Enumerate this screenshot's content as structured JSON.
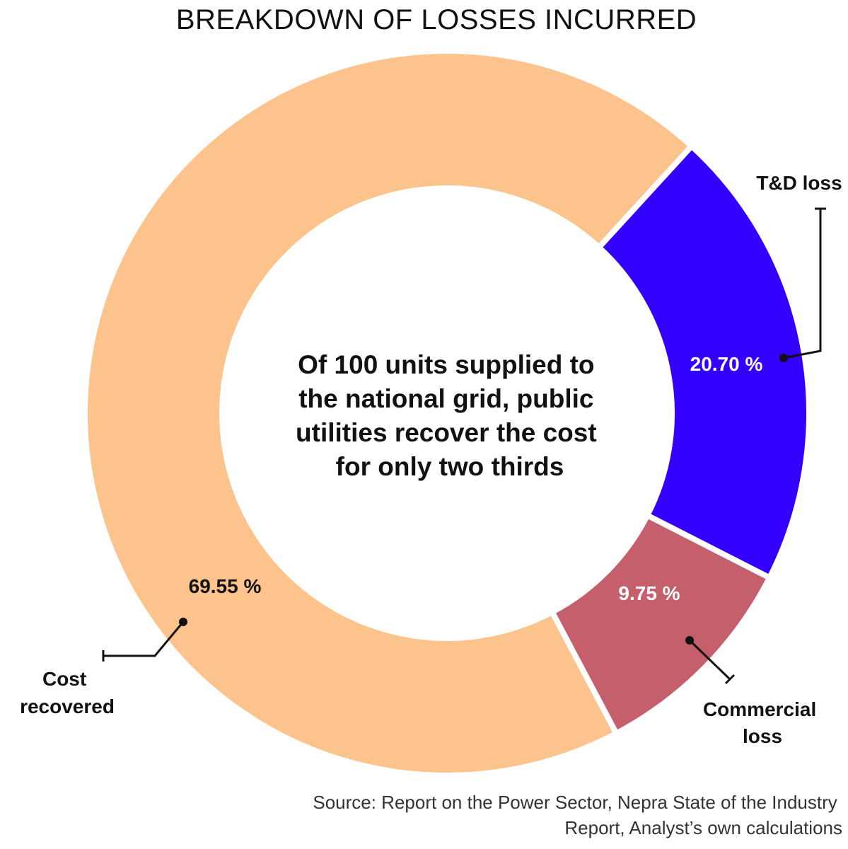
{
  "chart_data": {
    "type": "pie",
    "title": "BREAKDOWN OF LOSSES INCURRED",
    "center_text": [
      "Of 100 units supplied to",
      "the national grid, public",
      "utilities recover the cost",
      "for only two thirds"
    ],
    "categories": [
      "T&D loss",
      "Commercial loss",
      "Cost recovered"
    ],
    "values": [
      20.7,
      9.75,
      69.55
    ],
    "value_labels": [
      "20.70 %",
      "9.75 %",
      "69.55 %"
    ],
    "category_labels": [
      [
        "T&D loss"
      ],
      [
        "Commercial",
        "loss"
      ],
      [
        "Cost",
        "recovered"
      ]
    ],
    "colors": [
      "#3300ff",
      "#c65f6c",
      "#fcc48c"
    ],
    "source": [
      "Source: Report on the Power Sector, Nepra State of the Industry",
      "Report, Analyst’s own calculations"
    ]
  }
}
